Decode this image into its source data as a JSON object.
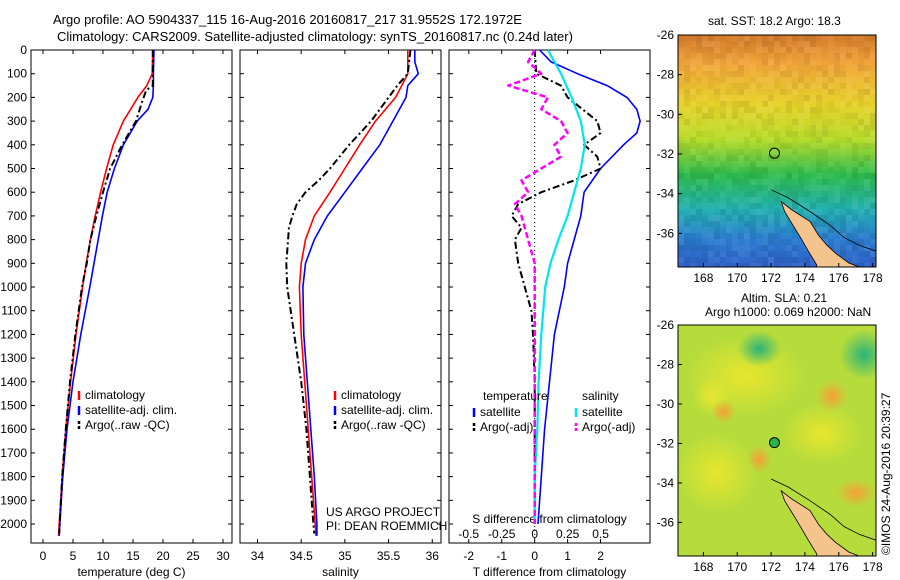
{
  "header": {
    "line1": "Argo profile: AO 5904337_115 16-Aug-2016 20160817_217 31.9552S 172.1972E",
    "line2": "Climatology: CARS2009. Satellite-adjusted climatology: synTS_20160817.nc (0.24d later)"
  },
  "project": {
    "line1": "US ARGO PROJECT",
    "line2": "PI: DEAN ROEMMICH"
  },
  "credit": "©IMOS 24-Aug-2016 20:39:27",
  "colors": {
    "climatology": "#ff0000",
    "satellite": "#0000ff",
    "argo": "#000000",
    "sat_salinity": "#00e5ee",
    "argo_salinity": "#ff00ff"
  },
  "chart_data": [
    {
      "type": "line",
      "xlabel": "temperature (deg C)",
      "ylabel": "",
      "xlim": [
        -2,
        31.5
      ],
      "ylim": [
        2080,
        0
      ],
      "xticks": [
        "0",
        "5",
        "10",
        "15",
        "20",
        "25",
        "30"
      ],
      "yticks": [
        "0",
        "100",
        "200",
        "300",
        "400",
        "500",
        "600",
        "700",
        "800",
        "900",
        "1000",
        "1100",
        "1200",
        "1300",
        "1400",
        "1500",
        "1600",
        "1700",
        "1800",
        "1900",
        "2000"
      ],
      "legend": [
        "climatology",
        "satellite-adj. clim.",
        "Argo(..raw -QC)"
      ],
      "series": [
        {
          "name": "climatology",
          "depth": [
            0,
            100,
            150,
            200,
            300,
            400,
            500,
            600,
            700,
            800,
            900,
            1000,
            1200,
            1400,
            1600,
            1800,
            2000,
            2050
          ],
          "values": [
            18.3,
            18.2,
            17.3,
            15.8,
            13.4,
            11.7,
            10.6,
            9.6,
            8.7,
            7.9,
            7.2,
            6.6,
            5.5,
            4.6,
            3.8,
            3.2,
            2.7,
            2.6
          ]
        },
        {
          "name": "satellite-adj. clim.",
          "depth": [
            0,
            100,
            150,
            200,
            250,
            300,
            400,
            500,
            600,
            700,
            800,
            900,
            1000,
            1200,
            1400,
            1600,
            1800,
            2000,
            2050
          ],
          "values": [
            18.5,
            18.4,
            18.4,
            18.3,
            17.5,
            15.7,
            13.4,
            11.9,
            10.7,
            9.9,
            9.2,
            8.5,
            7.8,
            6.3,
            5.0,
            4.0,
            3.3,
            2.8,
            2.7
          ]
        },
        {
          "name": "Argo(..raw -QC)",
          "depth": [
            0,
            100,
            150,
            170,
            220,
            300,
            400,
            500,
            600,
            700,
            800,
            900,
            1000,
            1200,
            1400,
            1600,
            1800,
            2000,
            2040
          ],
          "values": [
            18.3,
            18.3,
            18.3,
            17.2,
            16.5,
            15.5,
            13.2,
            11.2,
            10.0,
            8.9,
            7.9,
            7.3,
            6.5,
            5.4,
            4.5,
            3.8,
            3.2,
            2.8,
            2.7
          ]
        }
      ]
    },
    {
      "type": "line",
      "xlabel": "salinity",
      "ylabel": "",
      "xlim": [
        33.8,
        36.1
      ],
      "ylim": [
        2080,
        0
      ],
      "xticks": [
        "34",
        "34.5",
        "35",
        "35.5",
        "36"
      ],
      "legend": [
        "climatology",
        "satellite-adj. clim.",
        "Argo(..raw -QC)"
      ],
      "series": [
        {
          "name": "climatology",
          "depth": [
            0,
            100,
            150,
            200,
            300,
            400,
            500,
            600,
            700,
            800,
            900,
            1000,
            1200,
            1400,
            1600,
            1800,
            2000,
            2050
          ],
          "values": [
            35.72,
            35.72,
            35.65,
            35.58,
            35.35,
            35.17,
            35.0,
            34.83,
            34.65,
            34.55,
            34.5,
            34.48,
            34.5,
            34.54,
            34.58,
            34.62,
            34.66,
            34.67
          ]
        },
        {
          "name": "satellite-adj. clim.",
          "depth": [
            0,
            50,
            100,
            150,
            200,
            300,
            400,
            500,
            600,
            700,
            800,
            900,
            1000,
            1200,
            1400,
            1600,
            1800,
            2000,
            2050
          ],
          "values": [
            35.8,
            35.8,
            35.84,
            35.72,
            35.7,
            35.55,
            35.4,
            35.2,
            35.0,
            34.8,
            34.65,
            34.55,
            34.52,
            34.53,
            34.57,
            34.61,
            34.65,
            34.68,
            34.68
          ]
        },
        {
          "name": "Argo(..raw -QC)",
          "depth": [
            0,
            100,
            150,
            200,
            300,
            400,
            500,
            550,
            600,
            650,
            700,
            750,
            800,
            900,
            1000,
            1200,
            1400,
            1600,
            1800,
            2000,
            2040
          ],
          "values": [
            35.75,
            35.72,
            35.6,
            35.5,
            35.3,
            35.05,
            34.83,
            34.7,
            34.55,
            34.45,
            34.4,
            34.36,
            34.35,
            34.33,
            34.34,
            34.42,
            34.5,
            34.56,
            34.6,
            34.64,
            34.65
          ]
        }
      ]
    },
    {
      "type": "line",
      "xlabel": "T difference from climatology",
      "xlabel_top": "S difference from climatology",
      "xlim": [
        -2.6,
        3.5
      ],
      "ylim": [
        2080,
        0
      ],
      "xticks": [
        "-2",
        "-1",
        "0",
        "1",
        "2"
      ],
      "xticks_top": [
        "-0.5",
        "-0.25",
        "0",
        "0.25",
        "0.5"
      ],
      "legend_groups": {
        "temperature": "temperature",
        "salinity": "salinity"
      },
      "legend": [
        "satellite",
        "Argo(-adj)",
        "satellite",
        "Argo(-adj)"
      ],
      "series": [
        {
          "name": "satellite",
          "group": "temperature",
          "depth": [
            0,
            50,
            100,
            150,
            200,
            250,
            300,
            350,
            400,
            500,
            600,
            700,
            800,
            900,
            1000,
            1200,
            1400,
            1600,
            1800,
            2000
          ],
          "values": [
            0.15,
            0.5,
            1.3,
            2.2,
            2.8,
            3.1,
            3.2,
            3.1,
            2.7,
            2.0,
            1.5,
            1.4,
            1.2,
            1.0,
            0.9,
            0.6,
            0.45,
            0.3,
            0.2,
            0.1
          ]
        },
        {
          "name": "Argo(-adj)",
          "group": "temperature",
          "depth": [
            0,
            100,
            150,
            200,
            300,
            350,
            400,
            450,
            500,
            550,
            600,
            650,
            700,
            750,
            800,
            900,
            1000,
            1100,
            1200,
            1400,
            1600,
            1800,
            2000
          ],
          "values": [
            0.0,
            0.05,
            0.8,
            1.0,
            1.9,
            2.0,
            1.5,
            1.9,
            2.0,
            1.2,
            0.2,
            -0.5,
            -0.7,
            -0.4,
            -0.6,
            -0.5,
            -0.3,
            -0.1,
            -0.05,
            0.0,
            0.0,
            0.0,
            0.0
          ]
        },
        {
          "name": "satellite",
          "group": "salinity",
          "depth": [
            0,
            100,
            200,
            300,
            400,
            500,
            600,
            700,
            800,
            900,
            1000,
            1200,
            1400,
            1600,
            1800,
            2000
          ],
          "values": [
            0.1,
            0.2,
            0.28,
            0.35,
            0.38,
            0.35,
            0.3,
            0.25,
            0.18,
            0.12,
            0.08,
            0.05,
            0.03,
            0.02,
            0.0,
            0.0
          ]
        },
        {
          "name": "Argo(-adj)",
          "group": "salinity",
          "depth": [
            0,
            50,
            100,
            150,
            200,
            250,
            300,
            350,
            400,
            450,
            500,
            550,
            600,
            650,
            700,
            800,
            900,
            1000,
            1200,
            1400,
            1600,
            1800,
            2000
          ],
          "values": [
            0.0,
            -0.05,
            0.05,
            -0.2,
            0.1,
            0.05,
            0.2,
            0.25,
            0.15,
            0.2,
            0.05,
            -0.1,
            -0.05,
            -0.15,
            -0.1,
            -0.05,
            0.0,
            0.0,
            0.0,
            0.0,
            0.0,
            0.0,
            0.0
          ]
        }
      ]
    },
    {
      "type": "heatmap",
      "title": "sat. SST: 18.2 Argo: 18.3",
      "xlim": [
        166.5,
        178.2
      ],
      "ylim": [
        -37.7,
        -26
      ],
      "xticks": [
        "168",
        "170",
        "172",
        "174",
        "176",
        "178"
      ],
      "yticks": [
        "-26",
        "-28",
        "-30",
        "-32",
        "-34",
        "-36"
      ],
      "marker": {
        "lon": 172.2,
        "lat": -31.96
      }
    },
    {
      "type": "heatmap",
      "title": "Altim. SLA: 0.21",
      "subtitle": "Argo h1000: 0.069 h2000: NaN",
      "xlim": [
        166.5,
        178.2
      ],
      "ylim": [
        -37.7,
        -26
      ],
      "xticks": [
        "168",
        "170",
        "172",
        "174",
        "176",
        "178"
      ],
      "yticks": [
        "-26",
        "-28",
        "-30",
        "-32",
        "-34",
        "-36"
      ],
      "marker": {
        "lon": 172.2,
        "lat": -31.96
      }
    }
  ]
}
